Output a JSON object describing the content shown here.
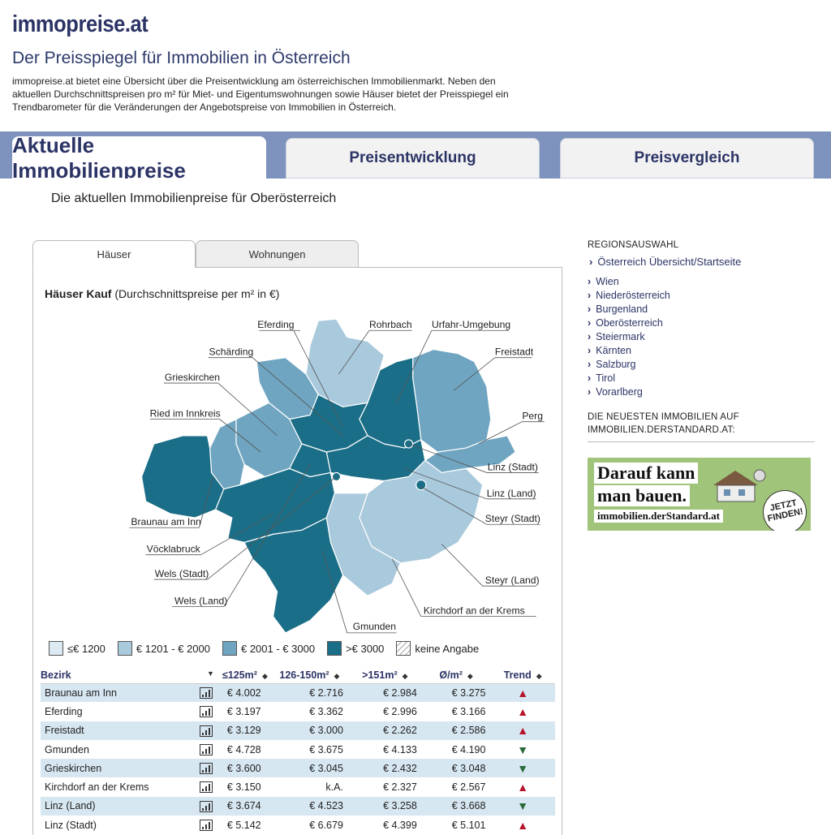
{
  "header": {
    "logo": "immopreise.at",
    "subtitle": "Der Preisspiegel für Immobilien in Österreich",
    "intro": "immopreise.at bietet eine Übersicht über die Preisentwicklung am österreichischen Immobilienmarkt. Neben den aktuellen Durchschnittspreisen pro m² für Miet- und Eigentumswohnungen sowie Häuser bietet der Preisspiegel ein Trendbarometer für die Veränderungen der Angebotspreise von Immobilien in Österreich."
  },
  "tabs": [
    {
      "label": "Aktuelle Immobilienpreise",
      "active": true
    },
    {
      "label": "Preisentwicklung",
      "active": false
    },
    {
      "label": "Preisvergleich",
      "active": false
    }
  ],
  "page_title": "Die aktuellen Immobilienpreise für Oberösterreich",
  "subtabs": [
    {
      "label": "Häuser",
      "active": true
    },
    {
      "label": "Wohnungen",
      "active": false
    }
  ],
  "map": {
    "title_bold": "Häuser Kauf",
    "title_rest": " (Durchschnittspreise per m² in €)",
    "labels": {
      "eferding": "Eferding",
      "rohrbach": "Rohrbach",
      "urfahr": "Urfahr-Umgebung",
      "schaerding": "Schärding",
      "freistadt": "Freistadt",
      "grieskirchen": "Grieskirchen",
      "ried": "Ried im Innkreis",
      "perg": "Perg",
      "linz_stadt": "Linz (Stadt)",
      "linz_land": "Linz (Land)",
      "braunau": "Braunau am Inn",
      "steyr_stadt": "Steyr (Stadt)",
      "voecklabruck": "Vöcklabruck",
      "wels_stadt": "Wels (Stadt)",
      "steyr_land": "Steyr (Land)",
      "wels_land": "Wels (Land)",
      "kirchdorf": "Kirchdorf an der Krems",
      "gmunden": "Gmunden"
    },
    "colors": {
      "c1": "#dcebf3",
      "c2": "#a9c9dc",
      "c3": "#6fa5c1",
      "c4": "#1b6e87"
    }
  },
  "legend": [
    {
      "label": "≤€ 1200",
      "color": "#dcebf3"
    },
    {
      "label": "€ 1201 - € 2000",
      "color": "#a9c9dc"
    },
    {
      "label": "€ 2001 - € 3000",
      "color": "#6fa5c1"
    },
    {
      "label": ">€ 3000",
      "color": "#1b6e87"
    },
    {
      "label": "keine Angabe",
      "color": "hatched"
    }
  ],
  "table": {
    "headers": [
      "Bezirk",
      "≤125m²",
      "126-150m²",
      ">151m²",
      "Ø/m²",
      "Trend"
    ],
    "rows": [
      {
        "name": "Braunau am Inn",
        "a": "€ 4.002",
        "b": "€ 2.716",
        "c": "€ 2.984",
        "d": "€ 3.275",
        "trend": "up"
      },
      {
        "name": "Eferding",
        "a": "€ 3.197",
        "b": "€ 3.362",
        "c": "€ 2.996",
        "d": "€ 3.166",
        "trend": "up"
      },
      {
        "name": "Freistadt",
        "a": "€ 3.129",
        "b": "€ 3.000",
        "c": "€ 2.262",
        "d": "€ 2.586",
        "trend": "up"
      },
      {
        "name": "Gmunden",
        "a": "€ 4.728",
        "b": "€ 3.675",
        "c": "€ 4.133",
        "d": "€ 4.190",
        "trend": "down"
      },
      {
        "name": "Grieskirchen",
        "a": "€ 3.600",
        "b": "€ 3.045",
        "c": "€ 2.432",
        "d": "€ 3.048",
        "trend": "down"
      },
      {
        "name": "Kirchdorf an der Krems",
        "a": "€ 3.150",
        "b": "k.A.",
        "c": "€ 2.327",
        "d": "€ 2.567",
        "trend": "up"
      },
      {
        "name": "Linz (Land)",
        "a": "€ 3.674",
        "b": "€ 4.523",
        "c": "€ 3.258",
        "d": "€ 3.668",
        "trend": "down"
      },
      {
        "name": "Linz (Stadt)",
        "a": "€ 5.142",
        "b": "€ 6.679",
        "c": "€ 4.399",
        "d": "€ 5.101",
        "trend": "up"
      }
    ]
  },
  "sidebar": {
    "heading": "REGIONSAUSWAHL",
    "overview": "Österreich Übersicht/Startseite",
    "regions": [
      "Wien",
      "Niederösterreich",
      "Burgenland",
      "Oberösterreich",
      "Steiermark",
      "Kärnten",
      "Salzburg",
      "Tirol",
      "Vorarlberg"
    ],
    "news_heading": "DIE NEUESTEN IMMOBILIEN AUF IMMOBILIEN.DERSTANDARD.AT:"
  },
  "banner": {
    "line1": "Darauf kann",
    "line2": "man bauen.",
    "line3": "immobilien.derStandard.at",
    "badge1": "JETZT",
    "badge2": "FINDEN!"
  }
}
